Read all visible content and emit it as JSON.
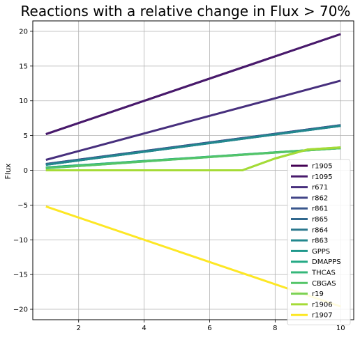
{
  "chart_data": {
    "type": "line",
    "title": "Reactions with a relative change in Flux > 70%",
    "xlabel": "",
    "ylabel": "Flux",
    "xlim": [
      0.6,
      10.4
    ],
    "ylim": [
      -21.5,
      21.5
    ],
    "xticks": [
      2,
      4,
      6,
      8,
      10
    ],
    "yticks": [
      -20,
      -15,
      -10,
      -5,
      0,
      5,
      10,
      15,
      20
    ],
    "grid": true,
    "legend_position": "bottom-right",
    "series": [
      {
        "name": "r1905",
        "color": "#440154",
        "x": [
          1,
          10
        ],
        "y": [
          5.2,
          19.6
        ]
      },
      {
        "name": "r1095",
        "color": "#481a6c",
        "x": [
          1,
          10
        ],
        "y": [
          5.2,
          19.6
        ]
      },
      {
        "name": "r671",
        "color": "#472f7d",
        "x": [
          1,
          10
        ],
        "y": [
          1.5,
          12.9
        ]
      },
      {
        "name": "r862",
        "color": "#414487",
        "x": [
          1,
          10
        ],
        "y": [
          0.9,
          6.5
        ]
      },
      {
        "name": "r861",
        "color": "#39568c",
        "x": [
          1,
          10
        ],
        "y": [
          0.9,
          6.5
        ]
      },
      {
        "name": "r865",
        "color": "#31688e",
        "x": [
          1,
          10
        ],
        "y": [
          0.8,
          6.4
        ]
      },
      {
        "name": "r864",
        "color": "#2a788e",
        "x": [
          1,
          10
        ],
        "y": [
          0.8,
          6.4
        ]
      },
      {
        "name": "r863",
        "color": "#23888e",
        "x": [
          1,
          10
        ],
        "y": [
          0.8,
          6.4
        ]
      },
      {
        "name": "GPPS",
        "color": "#1f988b",
        "x": [
          1,
          10
        ],
        "y": [
          0.4,
          3.2
        ]
      },
      {
        "name": "DMAPPS",
        "color": "#22a884",
        "x": [
          1,
          10
        ],
        "y": [
          0.4,
          3.2
        ]
      },
      {
        "name": "THCAS",
        "color": "#35b779",
        "x": [
          1,
          10
        ],
        "y": [
          0.3,
          3.2
        ]
      },
      {
        "name": "CBGAS",
        "color": "#54c568",
        "x": [
          1,
          10
        ],
        "y": [
          0.3,
          3.2
        ]
      },
      {
        "name": "r19",
        "color": "#7ad151",
        "x": [
          1,
          7,
          8,
          9,
          10
        ],
        "y": [
          0,
          0,
          1.7,
          3.0,
          3.3
        ]
      },
      {
        "name": "r1906",
        "color": "#a5db36",
        "x": [
          1,
          7,
          8,
          9,
          10
        ],
        "y": [
          0,
          0,
          1.7,
          3.0,
          3.3
        ]
      },
      {
        "name": "r1907",
        "color": "#fde725",
        "x": [
          1,
          10
        ],
        "y": [
          -5.2,
          -19.6
        ]
      }
    ]
  }
}
